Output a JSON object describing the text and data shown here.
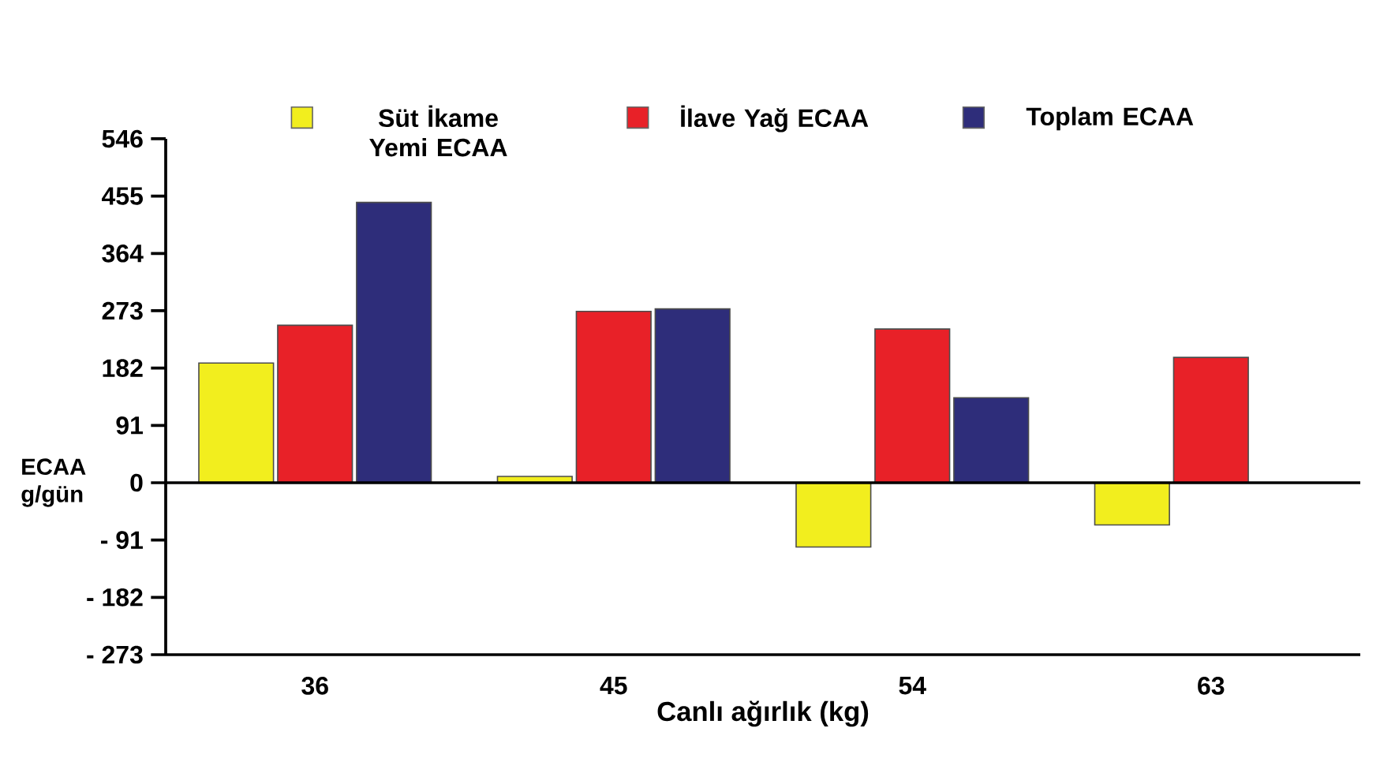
{
  "chart_data": {
    "type": "bar",
    "xlabel": "Canlı ağırlık (kg)",
    "ylabel": "ECAA g/gün",
    "categories": [
      "36",
      "45",
      "54",
      "63"
    ],
    "series": [
      {
        "name": "Süt İkame Yemi ECAA",
        "color": "#f2ee1e",
        "values": [
          190,
          10,
          -102,
          -67
        ]
      },
      {
        "name": "İlave Yağ ECAA",
        "color": "#e82128",
        "values": [
          250,
          272,
          244,
          199
        ]
      },
      {
        "name": "Toplam ECAA",
        "color": "#2e2d7a",
        "values": [
          445,
          276,
          135,
          null
        ]
      }
    ],
    "ylim": [
      -273,
      546
    ],
    "yticks": [
      {
        "value": -273,
        "label": "- 273"
      },
      {
        "value": -182,
        "label": "- 182"
      },
      {
        "value": -91,
        "label": "- 91"
      },
      0,
      91,
      182,
      273,
      364,
      455,
      546
    ],
    "legend": "top",
    "ref_lines": [
      {
        "axis": "y",
        "value": 0,
        "color": "#000000"
      }
    ]
  }
}
